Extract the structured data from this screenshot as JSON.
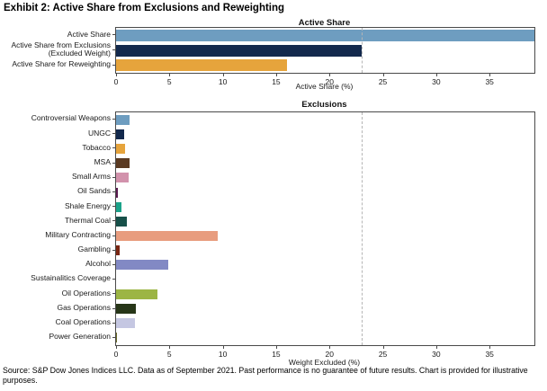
{
  "page": {
    "exhibit_title": "Exhibit 2: Active Share from Exclusions and Reweighting",
    "source_text": "Source: S&P Dow Jones Indices LLC. Data as of September 2021. Past performance is no guarantee of future results. Chart is provided for illustrative purposes."
  },
  "chart_data": [
    {
      "type": "bar",
      "orientation": "horizontal",
      "title": "Active Share",
      "xlabel": "Active Share (%)",
      "xlim": [
        0,
        39.2
      ],
      "xticks": [
        0,
        5,
        10,
        15,
        20,
        25,
        30,
        35
      ],
      "reference_line_x": 23,
      "grid": false,
      "legend": "none",
      "categories": [
        "Active Share",
        "Active Share from Exclusions\n(Excluded Weight)",
        "Active Share for Reweighting"
      ],
      "values": [
        39.2,
        23,
        16
      ],
      "colors": [
        "#6E9DC0",
        "#13294D",
        "#E6A43C"
      ]
    },
    {
      "type": "bar",
      "orientation": "horizontal",
      "title": "Exclusions",
      "xlabel": "Weight Excluded (%)",
      "xlim": [
        0,
        39.2
      ],
      "xticks": [
        0,
        5,
        10,
        15,
        20,
        25,
        30,
        35
      ],
      "reference_line_x": 23,
      "grid": false,
      "legend": "none",
      "categories": [
        "Controversial Weapons",
        "UNGC",
        "Tobacco",
        "MSA",
        "Small Arms",
        "Oil Sands",
        "Shale Energy",
        "Thermal Coal",
        "Military Contracting",
        "Gambling",
        "Alcohol",
        "Sustainalitics Coverage",
        "Oil Operations",
        "Gas Operations",
        "Coal Operations",
        "Power Generation"
      ],
      "values": [
        1.3,
        0.75,
        0.85,
        1.25,
        1.2,
        0.2,
        0.5,
        1.0,
        9.5,
        0.3,
        4.9,
        0.0,
        3.9,
        1.85,
        1.8,
        0.07
      ],
      "colors": [
        "#6E9DC0",
        "#13294D",
        "#E6A43C",
        "#5A3A22",
        "#D292AC",
        "#5B1A50",
        "#1CA38A",
        "#175049",
        "#E89C7E",
        "#7A2511",
        "#8289C4",
        "#BBBBBB",
        "#9CB544",
        "#273618",
        "#C5C7E2",
        "#6B6B2A"
      ]
    }
  ]
}
